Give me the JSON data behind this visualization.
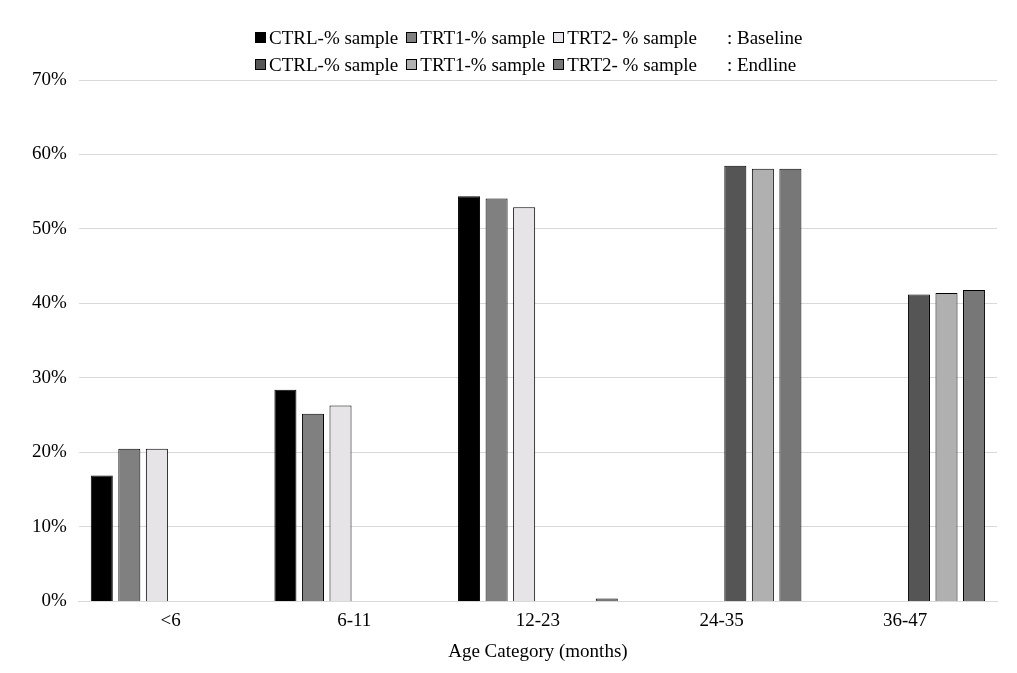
{
  "chart_data": {
    "type": "bar",
    "xlabel": "Age Category (months)",
    "categories": [
      "<6",
      "6-11",
      "12-23",
      "24-35",
      "36-47"
    ],
    "series": [
      {
        "name": "CTRL-% sample",
        "color": "#000000",
        "values": [
          16.9,
          28.4,
          54.4,
          null,
          null
        ]
      },
      {
        "name": "TRT1-% sample",
        "color": "#808080",
        "values": [
          20.5,
          25.2,
          54.1,
          null,
          null
        ]
      },
      {
        "name": "TRT2- % sample",
        "color": "#e6e4e6",
        "values": [
          20.5,
          26.3,
          52.9,
          null,
          null
        ]
      },
      {
        "name": "CTRL-% sample",
        "color": "#555555",
        "values": [
          null,
          null,
          null,
          58.5,
          41.2
        ]
      },
      {
        "name": "TRT1-% sample",
        "color": "#b0b0b0",
        "values": [
          null,
          null,
          null,
          58.1,
          41.4
        ]
      },
      {
        "name": "TRT2- % sample",
        "color": "#777777",
        "values": [
          null,
          null,
          0.4,
          58.1,
          41.8
        ]
      }
    ],
    "ylim": [
      0,
      70
    ],
    "yticks": [
      {
        "value": 0,
        "label": "0%"
      },
      {
        "value": 10,
        "label": "10%"
      },
      {
        "value": 20,
        "label": "20%"
      },
      {
        "value": 30,
        "label": "30%"
      },
      {
        "value": 40,
        "label": "40%"
      },
      {
        "value": 50,
        "label": "50%"
      },
      {
        "value": 60,
        "label": "60%"
      },
      {
        "value": 70,
        "label": "70%"
      }
    ],
    "grid": "y",
    "legend": "top",
    "annotations": [
      ": Baseline",
      ": Endline"
    ]
  }
}
